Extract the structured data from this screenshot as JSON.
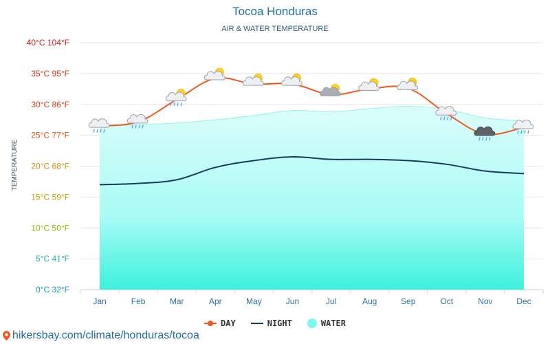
{
  "header": {
    "title": "Tocoa Honduras",
    "subtitle": "AIR & WATER TEMPERATURE"
  },
  "chart_data": {
    "type": "line",
    "title": "Tocoa Honduras",
    "subtitle": "AIR & WATER TEMPERATURE",
    "ylabel": "TEMPERATURE",
    "xlabel": "",
    "ylim": [
      0,
      40
    ],
    "grid": true,
    "legend_position": "bottom",
    "categories": [
      "Jan",
      "Feb",
      "Mar",
      "Apr",
      "May",
      "Jun",
      "Jul",
      "Aug",
      "Sep",
      "Oct",
      "Nov",
      "Dec"
    ],
    "y_ticks": [
      {
        "value": 40,
        "label": "40°C 104°F",
        "color": "#d81b1b"
      },
      {
        "value": 35,
        "label": "35°C 95°F",
        "color": "#d8321b"
      },
      {
        "value": 30,
        "label": "30°C 86°F",
        "color": "#d8421b"
      },
      {
        "value": 25,
        "label": "25°C 77°F",
        "color": "#e4571b"
      },
      {
        "value": 20,
        "label": "20°C 68°F",
        "color": "#e28a15"
      },
      {
        "value": 15,
        "label": "15°C 59°F",
        "color": "#c0a000"
      },
      {
        "value": 10,
        "label": "10°C 50°F",
        "color": "#88b800"
      },
      {
        "value": 5,
        "label": "5°C 41°F",
        "color": "#2ab0a0"
      },
      {
        "value": 0,
        "label": "0°C 32°F",
        "color": "#1a9ad0"
      }
    ],
    "series": [
      {
        "name": "DAY",
        "color": "#f0591d",
        "values": [
          26.5,
          27.2,
          30.8,
          34.2,
          33.3,
          33.3,
          31.6,
          32.5,
          32.6,
          28.5,
          25.2,
          26.3
        ]
      },
      {
        "name": "NIGHT",
        "color": "#183b5c",
        "values": [
          17.0,
          17.2,
          17.8,
          19.8,
          20.9,
          21.5,
          21.1,
          21.1,
          20.9,
          20.3,
          19.2,
          18.8
        ]
      },
      {
        "name": "WATER",
        "color": "#7ff7f0",
        "values": [
          26.5,
          26.7,
          27.0,
          27.5,
          28.2,
          29.0,
          28.8,
          29.3,
          29.7,
          29.2,
          27.8,
          27.3
        ]
      }
    ],
    "weather_icons": [
      "cloud-rain-icon",
      "cloud-rain-icon",
      "partly-cloudy-rain-icon",
      "partly-sunny-icon",
      "partly-sunny-icon",
      "partly-sunny-icon",
      "sun-cloud-icon",
      "partly-sunny-icon",
      "partly-sunny-icon",
      "cloud-rain-icon",
      "storm-cloud-rain-icon",
      "cloud-rain-icon"
    ]
  },
  "legend": {
    "day": "DAY",
    "night": "NIGHT",
    "water": "WATER"
  },
  "footer": {
    "url": "hikersbay.com/climate/honduras/tocoa"
  }
}
